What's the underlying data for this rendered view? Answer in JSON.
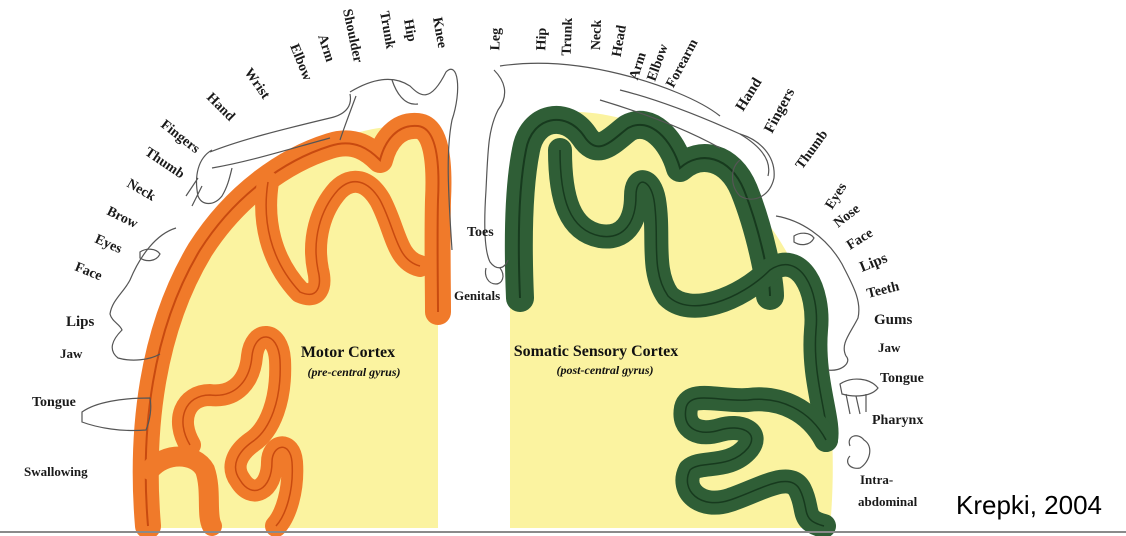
{
  "motor": {
    "title": "Motor Cortex",
    "subtitle": "(pre-central gyrus)",
    "labels": [
      "Knee",
      "Hip",
      "Trunk",
      "Shoulder",
      "Arm",
      "Elbow",
      "Wrist",
      "Hand",
      "Fingers",
      "Thumb",
      "Neck",
      "Brow",
      "Eyes",
      "Face",
      "Lips",
      "Jaw",
      "Tongue",
      "Swallowing"
    ]
  },
  "sensory": {
    "title": "Somatic Sensory Cortex",
    "subtitle": "(post-central gyrus)",
    "labels": [
      "Leg",
      "Hip",
      "Trunk",
      "Neck",
      "Head",
      "Arm",
      "Elbow",
      "Forearm",
      "Hand",
      "Fingers",
      "Thumb",
      "Eyes",
      "Nose",
      "Face",
      "Lips",
      "Teeth",
      "Gums",
      "Jaw",
      "Tongue",
      "Pharynx",
      "Intra-",
      "abdominal",
      "Toes",
      "Genitals"
    ]
  },
  "credit": "Krepki, 2004",
  "colors": {
    "motor_gyrus": "#f07a2a",
    "motor_edge": "#c84a10",
    "sensory_gyrus": "#2f5e36",
    "sensory_edge": "#173a1e",
    "cortex_fill": "#fbf3a0"
  }
}
